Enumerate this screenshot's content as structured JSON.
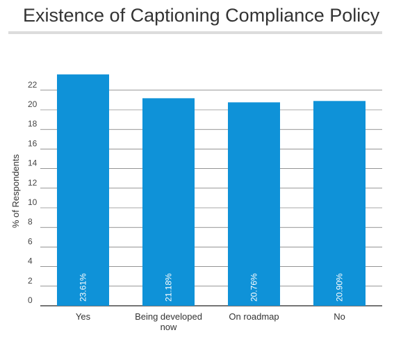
{
  "chart_data": {
    "type": "bar",
    "title": "Existence of Captioning Compliance Policy",
    "ylabel": "% of Respondents",
    "xlabel": "",
    "categories": [
      [
        "Yes"
      ],
      [
        "Being developed",
        "now"
      ],
      [
        "On roadmap"
      ],
      [
        "No"
      ]
    ],
    "values": [
      23.61,
      21.18,
      20.76,
      20.9
    ],
    "data_labels": [
      "23.61%",
      "21.18%",
      "20.76%",
      "20.90%"
    ],
    "yticks": [
      "0",
      "2",
      "4",
      "6",
      "8",
      "10",
      "12",
      "14",
      "16",
      "18",
      "20",
      "22"
    ],
    "ylim": [
      0,
      24
    ],
    "grid": true,
    "bar_color": "#0f92d8",
    "grid_color": "#555555",
    "axis_color": "#222222"
  }
}
